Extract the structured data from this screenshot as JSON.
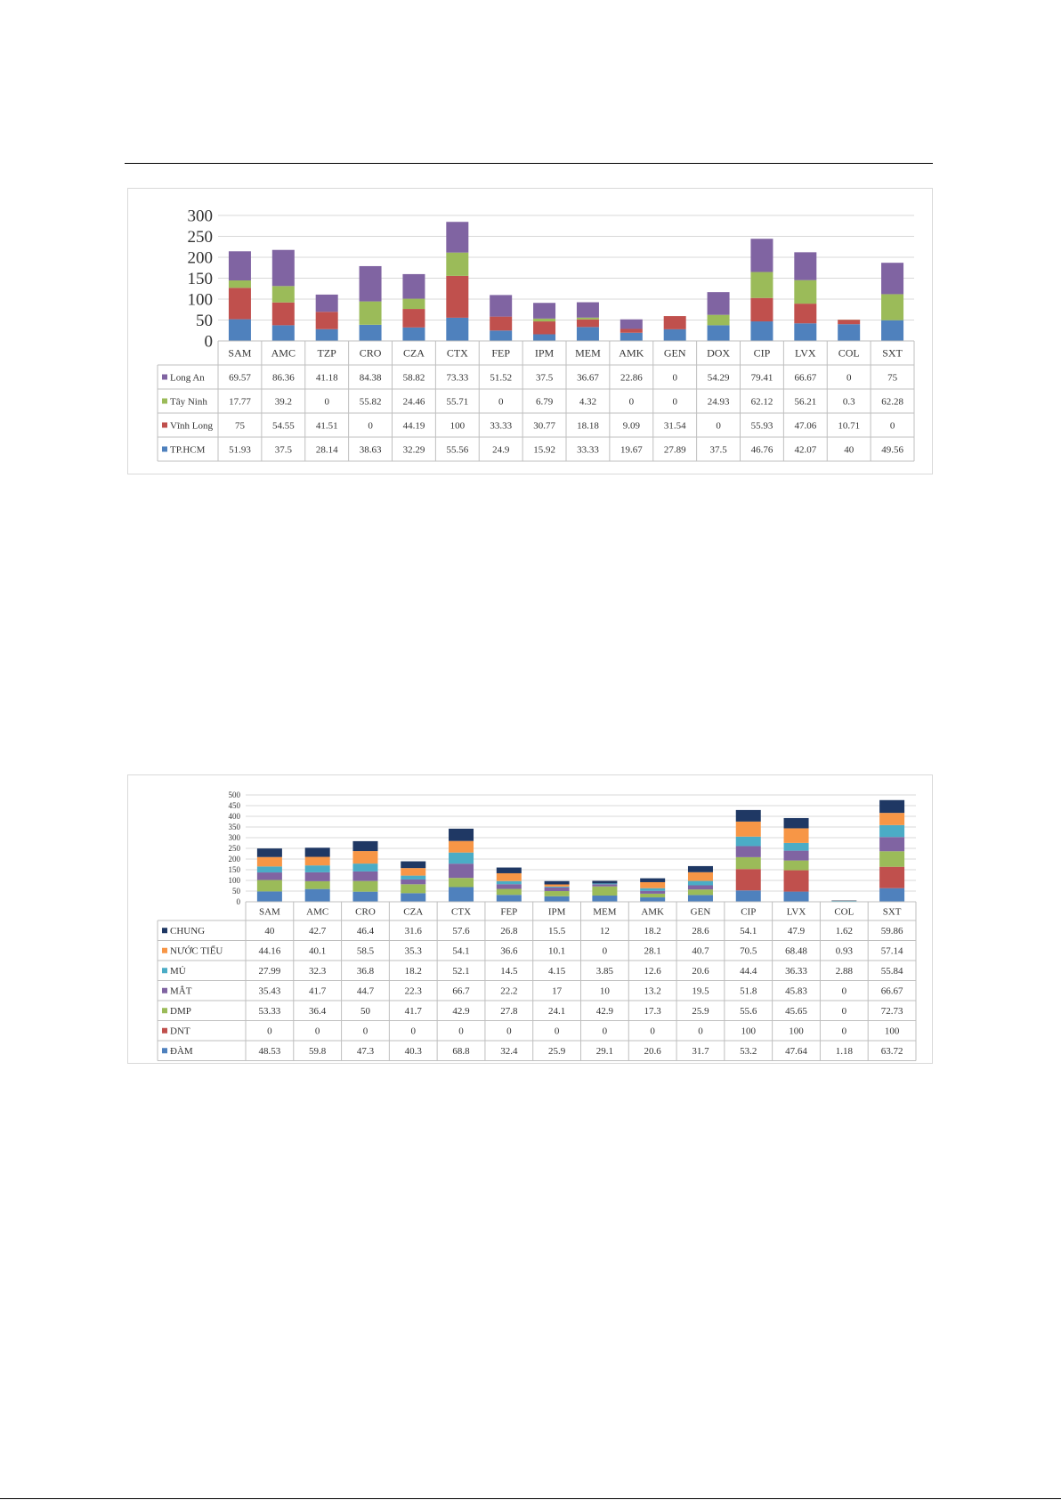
{
  "chart_data": [
    {
      "type": "bar",
      "stacked": true,
      "categories": [
        "SAM",
        "AMC",
        "TZP",
        "CRO",
        "CZA",
        "CTX",
        "FEP",
        "IPM",
        "MEM",
        "AMK",
        "GEN",
        "DOX",
        "CIP",
        "LVX",
        "COL",
        "SXT"
      ],
      "yticks": [
        0,
        50,
        100,
        150,
        200,
        250,
        300
      ],
      "ylim": [
        0,
        300
      ],
      "grid": true,
      "legend": "data-table",
      "series": [
        {
          "name": "Long An",
          "color": "#8064a2",
          "values": [
            "69.57",
            "86.36",
            "41.18",
            "84.38",
            "58.82",
            "73.33",
            "51.52",
            "37.5",
            "36.67",
            "22.86",
            "0",
            "54.29",
            "79.41",
            "66.67",
            "0",
            "75"
          ]
        },
        {
          "name": "Tây Ninh",
          "color": "#9bbb59",
          "values": [
            "17.77",
            "39.2",
            "0",
            "55.82",
            "24.46",
            "55.71",
            "0",
            "6.79",
            "4.32",
            "0",
            "0",
            "24.93",
            "62.12",
            "56.21",
            "0.3",
            "62.28"
          ]
        },
        {
          "name": "Vĩnh Long",
          "color": "#c0504d",
          "values": [
            "75",
            "54.55",
            "41.51",
            "0",
            "44.19",
            "100",
            "33.33",
            "30.77",
            "18.18",
            "9.09",
            "31.54",
            "0",
            "55.93",
            "47.06",
            "10.71",
            "0"
          ]
        },
        {
          "name": "TP.HCM",
          "color": "#4f81bd",
          "values": [
            "51.93",
            "37.5",
            "28.14",
            "38.63",
            "32.29",
            "55.56",
            "24.9",
            "15.92",
            "33.33",
            "19.67",
            "27.89",
            "37.5",
            "46.76",
            "42.07",
            "40",
            "49.56"
          ]
        }
      ]
    },
    {
      "type": "bar",
      "stacked": true,
      "categories": [
        "SAM",
        "AMC",
        "CRO",
        "CZA",
        "CTX",
        "FEP",
        "IPM",
        "MEM",
        "AMK",
        "GEN",
        "CIP",
        "LVX",
        "COL",
        "SXT"
      ],
      "yticks": [
        0,
        50,
        100,
        150,
        200,
        250,
        300,
        350,
        400,
        450,
        500
      ],
      "ylim": [
        0,
        500
      ],
      "grid": true,
      "legend": "data-table",
      "series": [
        {
          "name": "CHUNG",
          "color": "#1f3864",
          "values": [
            "40",
            "42.7",
            "46.4",
            "31.6",
            "57.6",
            "26.8",
            "15.5",
            "12",
            "18.2",
            "28.6",
            "54.1",
            "47.9",
            "1.62",
            "59.86"
          ]
        },
        {
          "name": "NƯỚC TIỂU",
          "color": "#f79646",
          "values": [
            "44.16",
            "40.1",
            "58.5",
            "35.3",
            "54.1",
            "36.6",
            "10.1",
            "0",
            "28.1",
            "40.7",
            "70.5",
            "68.48",
            "0.93",
            "57.14"
          ]
        },
        {
          "name": "MỦ",
          "color": "#4bacc6",
          "values": [
            "27.99",
            "32.3",
            "36.8",
            "18.2",
            "52.1",
            "14.5",
            "4.15",
            "3.85",
            "12.6",
            "20.6",
            "44.4",
            "36.33",
            "2.88",
            "55.84"
          ]
        },
        {
          "name": "MẮT",
          "color": "#8064a2",
          "values": [
            "35.43",
            "41.7",
            "44.7",
            "22.3",
            "66.7",
            "22.2",
            "17",
            "10",
            "13.2",
            "19.5",
            "51.8",
            "45.83",
            "0",
            "66.67"
          ]
        },
        {
          "name": "DMP",
          "color": "#9bbb59",
          "values": [
            "53.33",
            "36.4",
            "50",
            "41.7",
            "42.9",
            "27.8",
            "24.1",
            "42.9",
            "17.3",
            "25.9",
            "55.6",
            "45.65",
            "0",
            "72.73"
          ]
        },
        {
          "name": "DNT",
          "color": "#c0504d",
          "values": [
            "0",
            "0",
            "0",
            "0",
            "0",
            "0",
            "0",
            "0",
            "0",
            "0",
            "100",
            "100",
            "0",
            "100"
          ]
        },
        {
          "name": "ĐÀM",
          "color": "#4f81bd",
          "values": [
            "48.53",
            "59.8",
            "47.3",
            "40.3",
            "68.8",
            "32.4",
            "25.9",
            "29.1",
            "20.6",
            "31.7",
            "53.2",
            "47.64",
            "1.18",
            "63.72"
          ]
        }
      ]
    }
  ]
}
